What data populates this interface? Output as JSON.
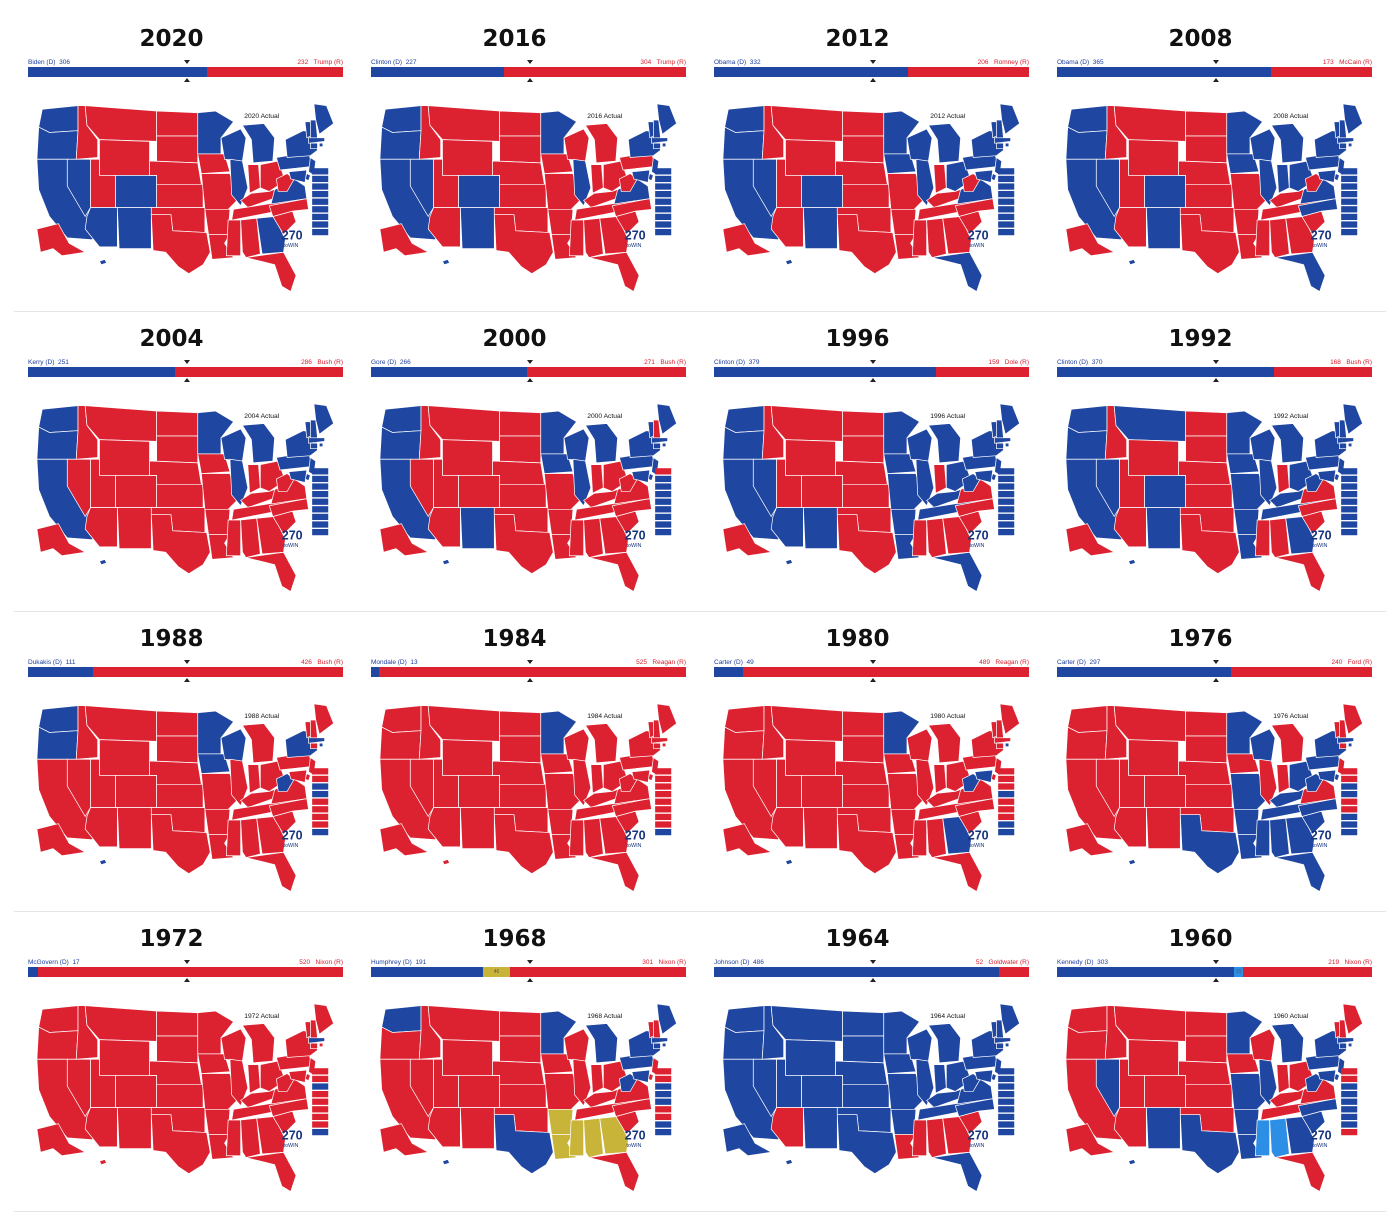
{
  "colors": {
    "dem": "#1f46a0",
    "rep": "#dc2230",
    "ind": "#c9b43a",
    "ind_blue": "#2d8ee6"
  },
  "map_brand": {
    "number": "270",
    "subtitle": "toWIN"
  },
  "elections": [
    {
      "year": "2020",
      "dem_label": "Biden (D)",
      "dem_ev": "306",
      "rep_label": "Trump (R)",
      "rep_ev": "232",
      "other_ev": "",
      "map_caption": "2020 Actual",
      "palette": "mixed",
      "dem_states": [
        "WA",
        "OR",
        "CA",
        "NV",
        "AZ",
        "CO",
        "NM",
        "MN",
        "WI",
        "MI",
        "IL",
        "PA",
        "NY",
        "VA",
        "GA",
        "HI",
        "ME",
        "VT",
        "NH",
        "MA",
        "RI",
        "CT",
        "NJ",
        "DE",
        "MD",
        "DC"
      ],
      "other_states": []
    },
    {
      "year": "2016",
      "dem_label": "Clinton (D)",
      "dem_ev": "227",
      "rep_label": "Trump (R)",
      "rep_ev": "304",
      "other_ev": "",
      "map_caption": "2016 Actual",
      "palette": "mixed",
      "dem_states": [
        "WA",
        "OR",
        "CA",
        "NV",
        "CO",
        "NM",
        "MN",
        "IL",
        "NY",
        "VA",
        "HI",
        "ME",
        "VT",
        "NH",
        "MA",
        "RI",
        "CT",
        "NJ",
        "DE",
        "MD",
        "DC"
      ],
      "other_states": []
    },
    {
      "year": "2012",
      "dem_label": "Obama (D)",
      "dem_ev": "332",
      "rep_label": "Romney (R)",
      "rep_ev": "206",
      "other_ev": "",
      "map_caption": "2012 Actual",
      "palette": "mixed",
      "dem_states": [
        "WA",
        "OR",
        "CA",
        "NV",
        "CO",
        "NM",
        "MN",
        "IA",
        "WI",
        "MI",
        "IL",
        "OH",
        "PA",
        "NY",
        "VA",
        "FL",
        "HI",
        "ME",
        "VT",
        "NH",
        "MA",
        "RI",
        "CT",
        "NJ",
        "DE",
        "MD",
        "DC"
      ],
      "other_states": []
    },
    {
      "year": "2008",
      "dem_label": "Obama (D)",
      "dem_ev": "365",
      "rep_label": "McCain (R)",
      "rep_ev": "173",
      "other_ev": "",
      "map_caption": "2008 Actual",
      "palette": "mixed",
      "dem_states": [
        "WA",
        "OR",
        "CA",
        "NV",
        "CO",
        "NM",
        "MN",
        "IA",
        "WI",
        "MI",
        "IL",
        "IN",
        "OH",
        "PA",
        "NY",
        "VA",
        "NC",
        "FL",
        "HI",
        "ME",
        "VT",
        "NH",
        "MA",
        "RI",
        "CT",
        "NJ",
        "DE",
        "MD",
        "DC"
      ],
      "other_states": []
    },
    {
      "year": "2004",
      "dem_label": "Kerry (D)",
      "dem_ev": "251",
      "rep_label": "Bush (R)",
      "rep_ev": "286",
      "other_ev": "",
      "map_caption": "2004 Actual",
      "palette": "mixed",
      "dem_states": [
        "WA",
        "OR",
        "CA",
        "MN",
        "WI",
        "MI",
        "IL",
        "PA",
        "NY",
        "HI",
        "ME",
        "VT",
        "NH",
        "MA",
        "RI",
        "CT",
        "NJ",
        "DE",
        "MD",
        "DC"
      ],
      "other_states": []
    },
    {
      "year": "2000",
      "dem_label": "Gore (D)",
      "dem_ev": "266",
      "rep_label": "Bush (R)",
      "rep_ev": "271",
      "other_ev": "",
      "map_caption": "2000 Actual",
      "palette": "mixed",
      "dem_states": [
        "WA",
        "OR",
        "CA",
        "NM",
        "MN",
        "IA",
        "WI",
        "MI",
        "IL",
        "PA",
        "NY",
        "HI",
        "ME",
        "VT",
        "MA",
        "RI",
        "CT",
        "NJ",
        "DE",
        "MD",
        "DC"
      ],
      "other_states": []
    },
    {
      "year": "1996",
      "dem_label": "Clinton (D)",
      "dem_ev": "379",
      "rep_label": "Dole (R)",
      "rep_ev": "159",
      "other_ev": "",
      "map_caption": "1996 Actual",
      "palette": "mixed",
      "dem_states": [
        "WA",
        "OR",
        "CA",
        "NV",
        "AZ",
        "NM",
        "MN",
        "IA",
        "WI",
        "MI",
        "IL",
        "OH",
        "PA",
        "NY",
        "MO",
        "AR",
        "LA",
        "TN",
        "KY",
        "WV",
        "FL",
        "HI",
        "ME",
        "VT",
        "NH",
        "MA",
        "RI",
        "CT",
        "NJ",
        "DE",
        "MD",
        "DC"
      ],
      "other_states": []
    },
    {
      "year": "1992",
      "dem_label": "Clinton (D)",
      "dem_ev": "370",
      "rep_label": "Bush (R)",
      "rep_ev": "168",
      "other_ev": "",
      "map_caption": "1992 Actual",
      "palette": "mixed",
      "dem_states": [
        "WA",
        "OR",
        "CA",
        "NV",
        "MT",
        "CO",
        "NM",
        "MN",
        "IA",
        "WI",
        "MI",
        "IL",
        "OH",
        "PA",
        "NY",
        "MO",
        "AR",
        "LA",
        "TN",
        "KY",
        "WV",
        "GA",
        "HI",
        "ME",
        "VT",
        "NH",
        "MA",
        "RI",
        "CT",
        "NJ",
        "DE",
        "MD",
        "DC"
      ],
      "other_states": []
    },
    {
      "year": "1988",
      "dem_label": "Dukakis (D)",
      "dem_ev": "111",
      "rep_label": "Bush (R)",
      "rep_ev": "426",
      "other_ev": "",
      "map_caption": "1988 Actual",
      "palette": "mixed",
      "dem_states": [
        "WA",
        "OR",
        "MN",
        "IA",
        "WI",
        "WV",
        "NY",
        "HI",
        "MA",
        "RI",
        "DC"
      ],
      "other_states": []
    },
    {
      "year": "1984",
      "dem_label": "Mondale (D)",
      "dem_ev": "13",
      "rep_label": "Reagan (R)",
      "rep_ev": "525",
      "other_ev": "",
      "map_caption": "1984 Actual",
      "palette": "mixed",
      "dem_states": [
        "MN",
        "DC"
      ],
      "other_states": []
    },
    {
      "year": "1980",
      "dem_label": "Carter (D)",
      "dem_ev": "49",
      "rep_label": "Reagan (R)",
      "rep_ev": "489",
      "other_ev": "",
      "map_caption": "1980 Actual",
      "palette": "mixed",
      "dem_states": [
        "MN",
        "WV",
        "MD",
        "GA",
        "HI",
        "RI",
        "DC"
      ],
      "other_states": []
    },
    {
      "year": "1976",
      "dem_label": "Carter (D)",
      "dem_ev": "297",
      "rep_label": "Ford (R)",
      "rep_ev": "240",
      "other_ev": "",
      "map_caption": "1976 Actual",
      "palette": "mixed",
      "dem_states": [
        "TX",
        "MN",
        "WI",
        "MO",
        "AR",
        "LA",
        "MS",
        "AL",
        "TN",
        "KY",
        "OH",
        "PA",
        "NY",
        "WV",
        "NC",
        "SC",
        "GA",
        "FL",
        "HI",
        "MA",
        "RI",
        "DE",
        "MD",
        "DC"
      ],
      "other_states": []
    },
    {
      "year": "1972",
      "dem_label": "McGovern (D)",
      "dem_ev": "17",
      "rep_label": "Nixon (R)",
      "rep_ev": "520",
      "other_ev": "",
      "map_caption": "1972 Actual",
      "palette": "mixed",
      "dem_states": [
        "MA",
        "DC"
      ],
      "other_states": []
    },
    {
      "year": "1968",
      "dem_label": "Humphrey (D)",
      "dem_ev": "191",
      "rep_label": "Nixon (R)",
      "rep_ev": "301",
      "other_ev": "46",
      "map_caption": "1968 Actual",
      "palette": "mixed",
      "dem_states": [
        "WA",
        "TX",
        "MN",
        "MI",
        "PA",
        "NY",
        "WV",
        "HI",
        "ME",
        "MA",
        "RI",
        "CT",
        "MD",
        "DC"
      ],
      "other_states": [
        "AR",
        "LA",
        "MS",
        "AL",
        "GA"
      ]
    },
    {
      "year": "1964",
      "dem_label": "Johnson (D)",
      "dem_ev": "486",
      "rep_label": "Goldwater (R)",
      "rep_ev": "52",
      "other_ev": "",
      "map_caption": "1964 Actual",
      "palette": "mixed",
      "dem_states": [
        "WA",
        "OR",
        "CA",
        "NV",
        "ID",
        "MT",
        "WY",
        "UT",
        "CO",
        "NM",
        "ND",
        "SD",
        "NE",
        "KS",
        "OK",
        "TX",
        "MN",
        "IA",
        "MO",
        "AR",
        "WI",
        "IL",
        "IN",
        "MI",
        "OH",
        "KY",
        "TN",
        "WV",
        "VA",
        "NC",
        "FL",
        "PA",
        "NY",
        "HI",
        "AK",
        "ME",
        "VT",
        "NH",
        "MA",
        "RI",
        "CT",
        "NJ",
        "DE",
        "MD",
        "DC"
      ],
      "other_states": []
    },
    {
      "year": "1960",
      "dem_label": "Kennedy (D)",
      "dem_ev": "303",
      "rep_label": "Nixon (R)",
      "rep_ev": "219",
      "other_ev": "15",
      "map_caption": "1960 Actual",
      "palette": "mixed",
      "dem_states": [
        "NV",
        "NM",
        "TX",
        "MN",
        "MO",
        "AR",
        "LA",
        "IL",
        "MI",
        "PA",
        "NY",
        "WV",
        "NC",
        "SC",
        "GA",
        "HI",
        "RI",
        "MA",
        "CT",
        "NJ",
        "DE",
        "MD"
      ],
      "other_states": [
        "MS",
        "AL"
      ]
    }
  ]
}
